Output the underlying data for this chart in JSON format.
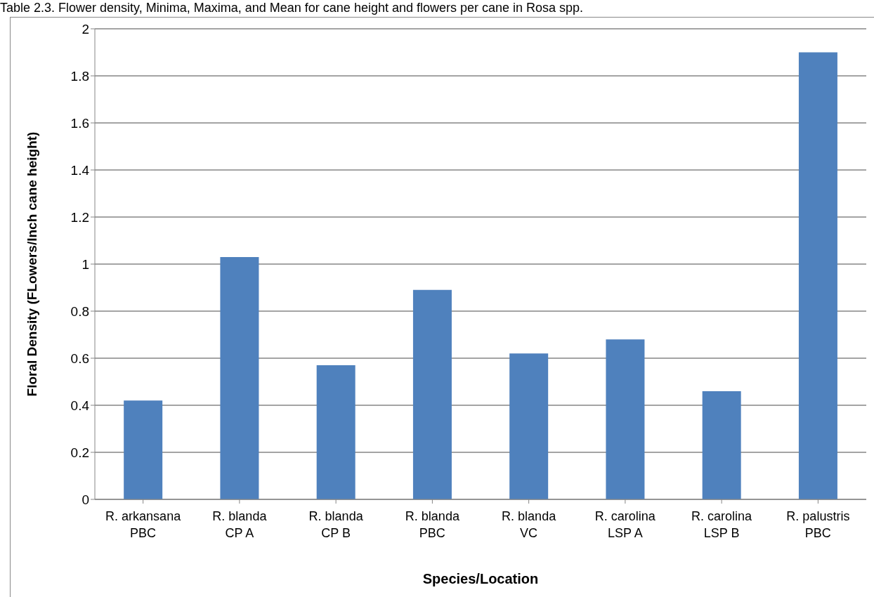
{
  "chart_data": {
    "type": "bar",
    "title": "Table 2.3. Flower density, Minima, Maxima, and Mean for cane height and flowers per cane in Rosa spp.",
    "xlabel": "Species/Location",
    "ylabel": "Floral Density (FLowers/Inch cane height)",
    "categories": [
      "R. arkansana\nPBC",
      "R. blanda\nCP A",
      "R. blanda\nCP B",
      "R. blanda\nPBC",
      "R. blanda\nVC",
      "R. carolina\nLSP A",
      "R. carolina\nLSP B",
      "R. palustris\nPBC"
    ],
    "values": [
      0.42,
      1.03,
      0.57,
      0.89,
      0.62,
      0.68,
      0.46,
      1.9
    ],
    "color": "#4f81bd",
    "ylim": [
      0,
      2
    ],
    "yticks": [
      0,
      0.2,
      0.4,
      0.6,
      0.8,
      1,
      1.2,
      1.4,
      1.6,
      1.8,
      2
    ],
    "grid": "y"
  }
}
